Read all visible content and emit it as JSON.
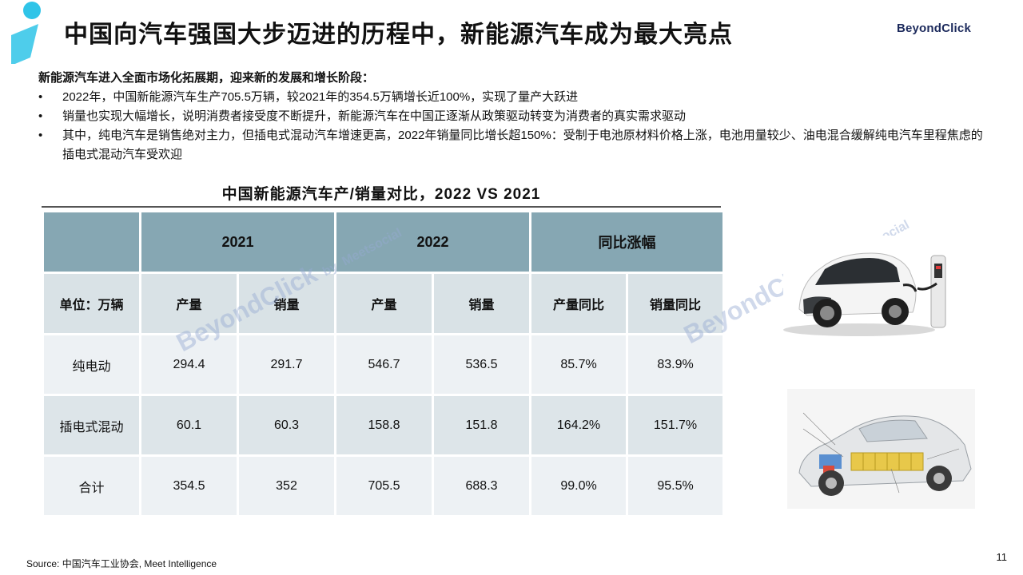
{
  "title": "中国向汽车强国大步迈进的历程中，新能源汽车成为最大亮点",
  "brand": "BeyondClick",
  "intro": {
    "lead": "新能源汽车进入全面市场化拓展期，迎来新的发展和增长阶段：",
    "bullets": [
      "2022年，中国新能源汽车生产705.5万辆，较2021年的354.5万辆增长近100%，实现了量产大跃进",
      "销量也实现大幅增长，说明消费者接受度不断提升，新能源汽车在中国正逐渐从政策驱动转变为消费者的真实需求驱动",
      "其中，纯电汽车是销售绝对主力，但插电式混动汽车增速更高，2022年销量同比增长超150%：受制于电池原材料价格上涨，电池用量较少、油电混合缓解纯电汽车里程焦虑的插电式混动汽车受欢迎"
    ]
  },
  "table": {
    "title": "中国新能源汽车产/销量对比，2022 VS 2021",
    "group_headers": [
      "2021",
      "2022",
      "同比涨幅"
    ],
    "unit_label": "单位：万辆",
    "sub_headers": [
      "产量",
      "销量",
      "产量",
      "销量",
      "产量同比",
      "销量同比"
    ],
    "rows": [
      {
        "label": "纯电动",
        "values": [
          "294.4",
          "291.7",
          "546.7",
          "536.5",
          "85.7%",
          "83.9%"
        ]
      },
      {
        "label": "插电式混动",
        "values": [
          "60.1",
          "60.3",
          "158.8",
          "151.8",
          "164.2%",
          "151.7%"
        ]
      },
      {
        "label": "合计",
        "values": [
          "354.5",
          "352",
          "705.5",
          "688.3",
          "99.0%",
          "95.5%"
        ]
      }
    ]
  },
  "watermark": {
    "main": "BeyondClick",
    "by": "by",
    "partner": "Meetsocial"
  },
  "source": "Source: 中国汽车工业协会, Meet Intelligence",
  "page_number": "11",
  "colors": {
    "header_teal": "#86a7b3",
    "sub_header": "#d9e2e6",
    "accent_cyan": "#2fc4e8",
    "brand_navy": "#1c2a5c"
  }
}
